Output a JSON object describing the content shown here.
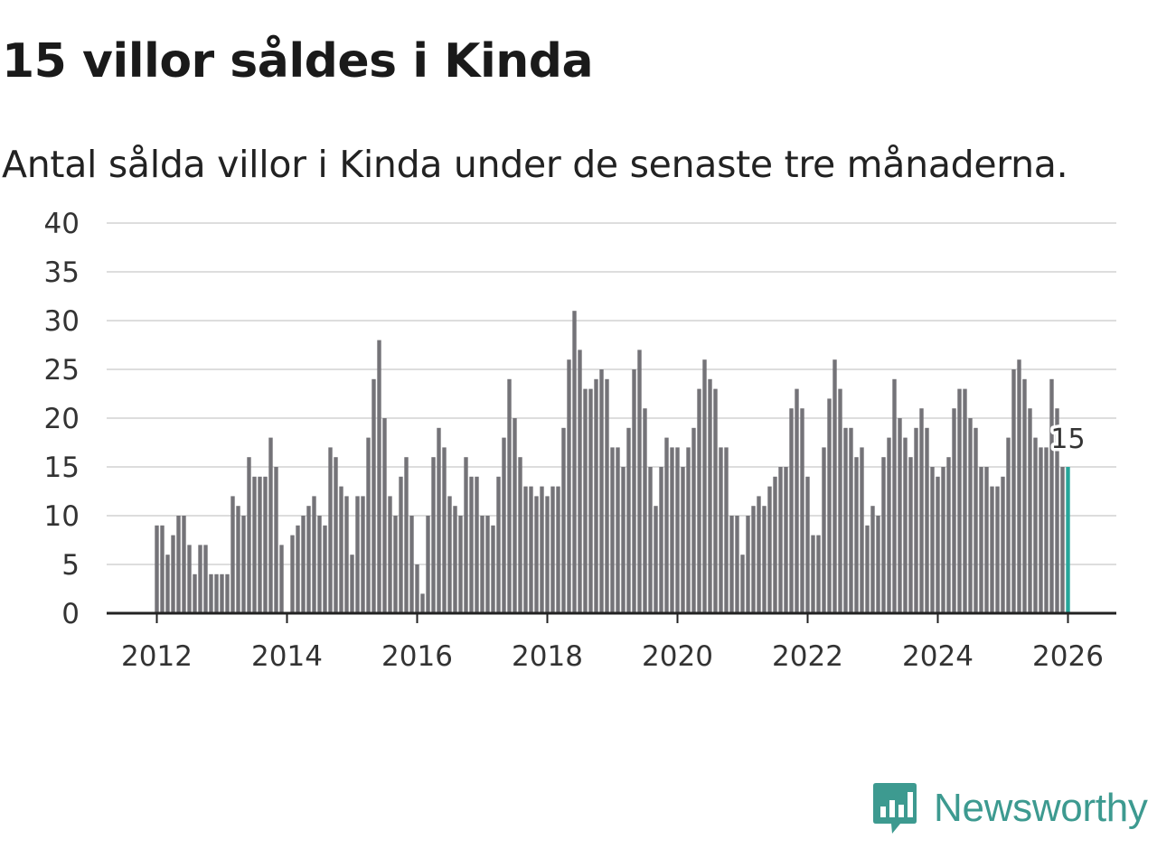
{
  "title": "15 villor såldes i Kinda",
  "subtitle": "Antal sålda villor i Kinda under de senaste tre månaderna.",
  "brand": "Newsworthy",
  "colors": {
    "bar": "#747378",
    "highlight": "#26a69a",
    "grid": "#dddddd",
    "axis": "#222222",
    "brand": "#3d9a90"
  },
  "chart_data": {
    "type": "bar",
    "title": "15 villor såldes i Kinda",
    "xlabel": "",
    "ylabel": "",
    "ylim": [
      0,
      40
    ],
    "yticks": [
      "0",
      "5",
      "10",
      "15",
      "20",
      "25",
      "30",
      "35",
      "40"
    ],
    "xticks": [
      "2012",
      "2014",
      "2016",
      "2018",
      "2020",
      "2022",
      "2024",
      "2026"
    ],
    "x_start": "2012-01",
    "x_end": "2026-01",
    "frequency": "monthly",
    "highlight_label": "15",
    "values": [
      9,
      9,
      6,
      8,
      10,
      10,
      7,
      4,
      7,
      7,
      4,
      4,
      4,
      4,
      12,
      11,
      10,
      16,
      14,
      14,
      14,
      18,
      15,
      7,
      0,
      8,
      9,
      10,
      11,
      12,
      10,
      9,
      17,
      16,
      13,
      12,
      6,
      12,
      12,
      18,
      24,
      28,
      20,
      12,
      10,
      14,
      16,
      10,
      5,
      2,
      10,
      16,
      19,
      17,
      12,
      11,
      10,
      16,
      14,
      14,
      10,
      10,
      9,
      14,
      18,
      24,
      20,
      16,
      13,
      13,
      12,
      13,
      12,
      13,
      13,
      19,
      26,
      31,
      27,
      23,
      23,
      24,
      25,
      24,
      17,
      17,
      15,
      19,
      25,
      27,
      21,
      15,
      11,
      15,
      18,
      17,
      17,
      15,
      17,
      19,
      23,
      26,
      24,
      23,
      17,
      17,
      10,
      10,
      6,
      10,
      11,
      12,
      11,
      13,
      14,
      15,
      15,
      21,
      23,
      21,
      14,
      8,
      8,
      17,
      22,
      26,
      23,
      19,
      19,
      16,
      17,
      9,
      11,
      10,
      16,
      18,
      24,
      20,
      18,
      16,
      19,
      21,
      19,
      15,
      14,
      15,
      16,
      21,
      23,
      23,
      20,
      19,
      15,
      15,
      13,
      13,
      14,
      18,
      25,
      26,
      24,
      21,
      18,
      17,
      17,
      24,
      21,
      15,
      15
    ]
  }
}
